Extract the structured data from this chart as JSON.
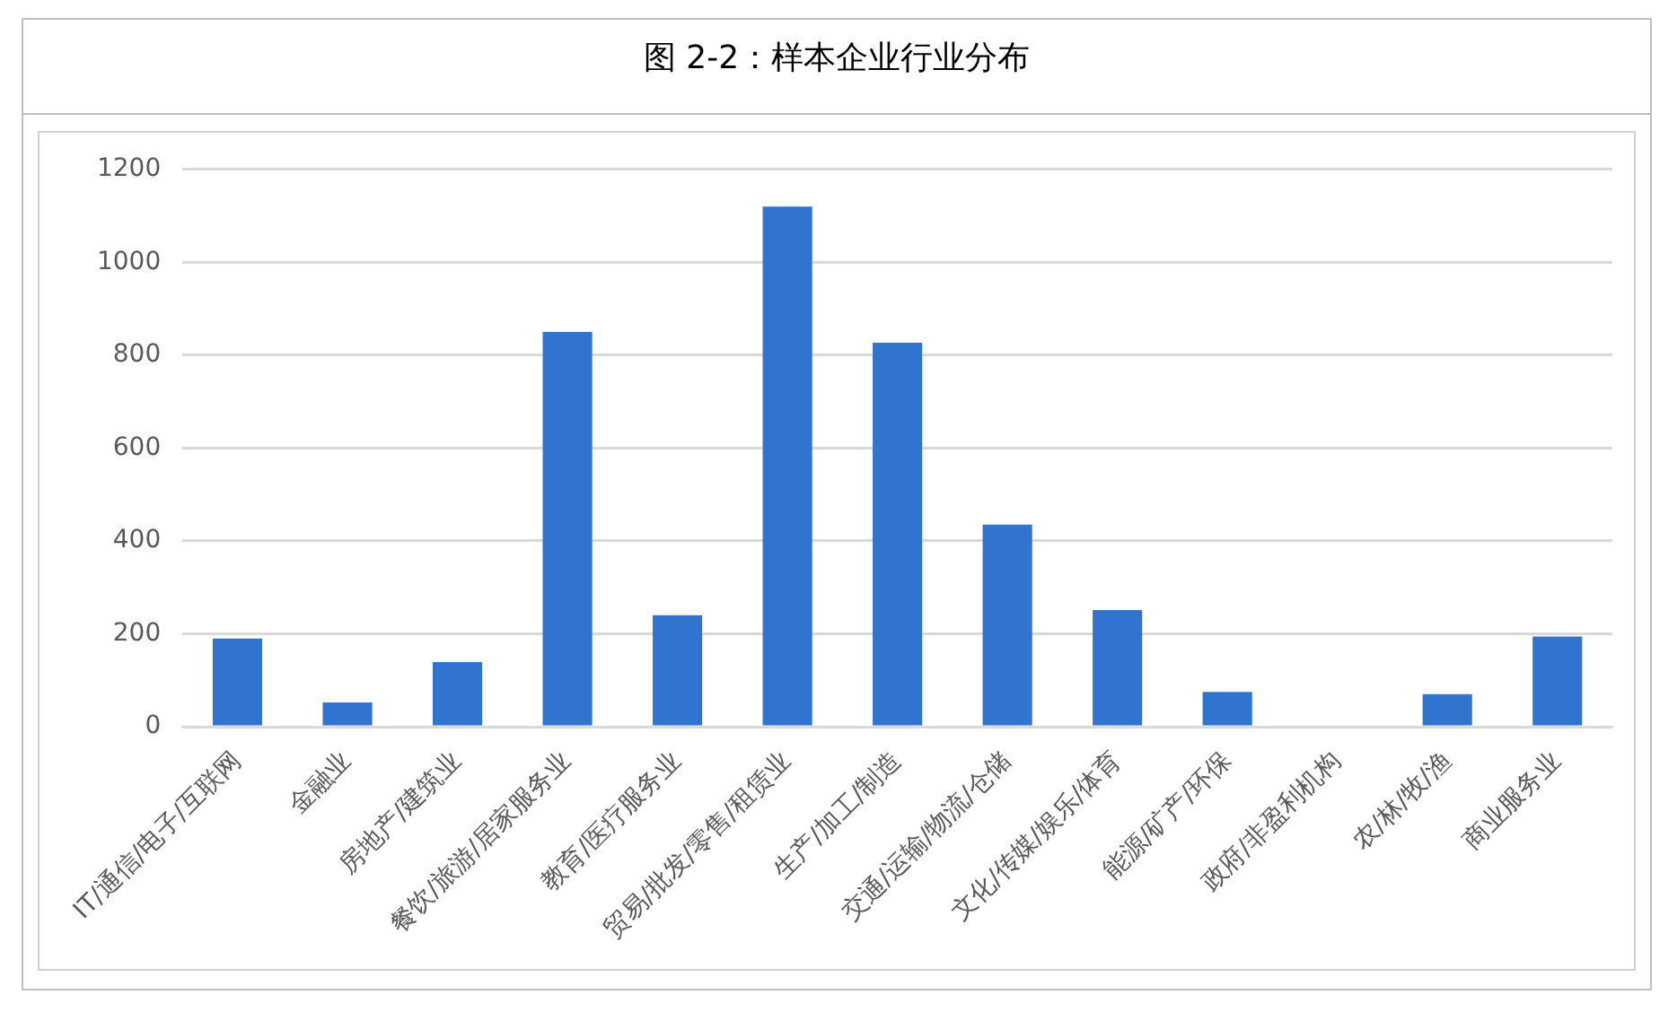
{
  "chart_data": {
    "type": "bar",
    "title": "图 2-2：样本企业行业分布",
    "categories": [
      "IT/通信/电子/互联网",
      "金融业",
      "房地产/建筑业",
      "餐饮/旅游/居家服务业",
      "教育/医疗服务业",
      "贸易/批发/零售/租赁业",
      "生产/加工/制造",
      "交通/运输/物流/仓储",
      "文化/传媒/娱乐/体育",
      "能源/矿产/环保",
      "政府/非盈利机构",
      "农/林/牧/渔",
      "商业服务业"
    ],
    "values": [
      190,
      52,
      139,
      850,
      240,
      1120,
      827,
      435,
      251,
      75,
      0,
      70,
      194
    ],
    "color": "#3174d0",
    "ylim": [
      0,
      1200
    ],
    "yticks": [
      0,
      200,
      400,
      600,
      800,
      1000,
      1200
    ],
    "grid": "y"
  }
}
